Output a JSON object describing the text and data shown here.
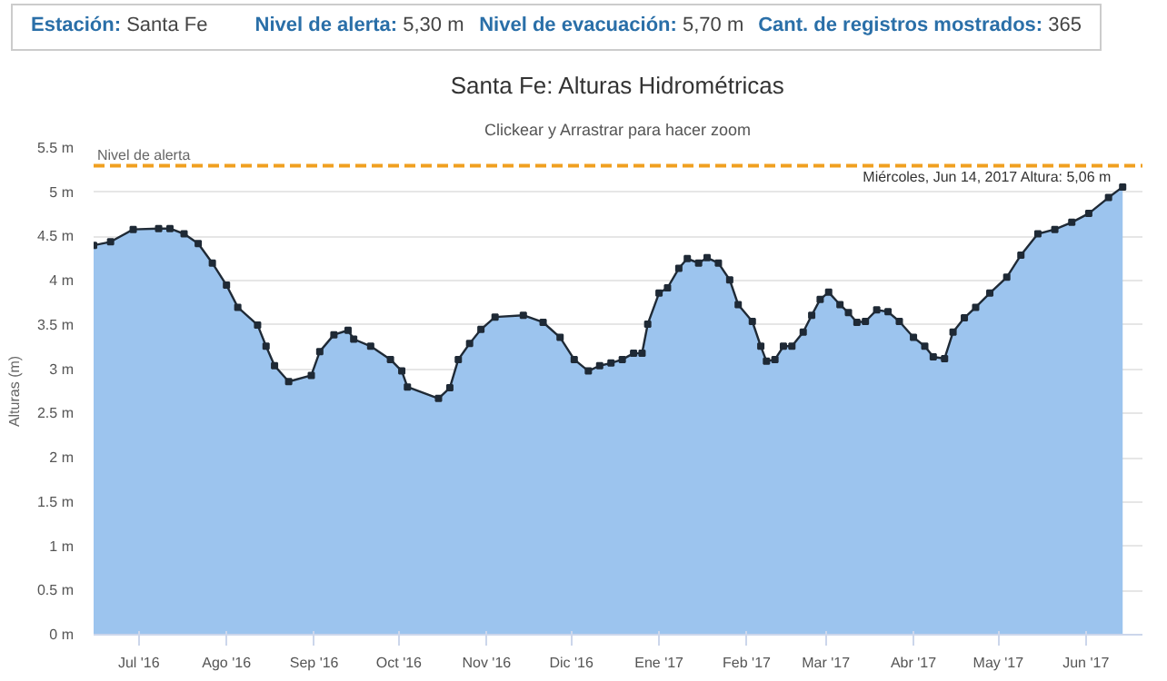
{
  "chart_data": {
    "type": "area",
    "title": "Santa Fe: Alturas Hidrométricas",
    "subtitle": "Clickear y Arrastrar para hacer zoom",
    "ylabel": "Alturas (m)",
    "annotations": [
      "Estación: Santa Fe",
      "Nivel de alerta: 5,30 m",
      "Nivel de evacuación: 5,70 m",
      "Cant. de registros mostrados: 365",
      {
        "text": "Miércoles, Jun 14, 2017 Altura: 5,06 m",
        "x": "2017-06-14",
        "y": 5.06
      }
    ],
    "x": [
      "2016-06-15",
      "2016-06-21",
      "2016-06-29",
      "2016-07-08",
      "2016-07-12",
      "2016-07-17",
      "2016-07-22",
      "2016-07-27",
      "2016-08-01",
      "2016-08-05",
      "2016-08-12",
      "2016-08-15",
      "2016-08-18",
      "2016-08-23",
      "2016-08-31",
      "2016-09-03",
      "2016-09-08",
      "2016-09-13",
      "2016-09-15",
      "2016-09-21",
      "2016-09-28",
      "2016-10-02",
      "2016-10-04",
      "2016-10-15",
      "2016-10-19",
      "2016-10-22",
      "2016-10-26",
      "2016-10-30",
      "2016-11-04",
      "2016-11-14",
      "2016-11-21",
      "2016-11-27",
      "2016-12-02",
      "2016-12-07",
      "2016-12-11",
      "2016-12-15",
      "2016-12-19",
      "2016-12-23",
      "2016-12-26",
      "2016-12-28",
      "2017-01-01",
      "2017-01-04",
      "2017-01-08",
      "2017-01-11",
      "2017-01-15",
      "2017-01-18",
      "2017-01-22",
      "2017-01-26",
      "2017-01-29",
      "2017-02-03",
      "2017-02-06",
      "2017-02-08",
      "2017-02-11",
      "2017-02-14",
      "2017-02-17",
      "2017-02-21",
      "2017-02-24",
      "2017-02-27",
      "2017-03-02",
      "2017-03-06",
      "2017-03-09",
      "2017-03-12",
      "2017-03-15",
      "2017-03-19",
      "2017-03-23",
      "2017-03-27",
      "2017-04-01",
      "2017-04-05",
      "2017-04-08",
      "2017-04-12",
      "2017-04-15",
      "2017-04-19",
      "2017-04-23",
      "2017-04-28",
      "2017-05-04",
      "2017-05-09",
      "2017-05-15",
      "2017-05-21",
      "2017-05-27",
      "2017-06-02",
      "2017-06-09",
      "2017-06-14"
    ],
    "series": [
      {
        "color": "#9cc4ee",
        "values": [
          4.4,
          4.44,
          4.58,
          4.59,
          4.59,
          4.53,
          4.42,
          4.2,
          3.95,
          3.7,
          3.5,
          3.26,
          3.04,
          2.86,
          2.93,
          3.2,
          3.39,
          3.44,
          3.34,
          3.26,
          3.11,
          2.98,
          2.8,
          2.67,
          2.79,
          3.11,
          3.29,
          3.45,
          3.59,
          3.61,
          3.53,
          3.36,
          3.11,
          2.98,
          3.04,
          3.07,
          3.11,
          3.18,
          3.18,
          3.51,
          3.86,
          3.92,
          4.14,
          4.25,
          4.2,
          4.26,
          4.2,
          4.01,
          3.73,
          3.54,
          3.26,
          3.09,
          3.11,
          3.26,
          3.26,
          3.42,
          3.61,
          3.79,
          3.87,
          3.73,
          3.64,
          3.53,
          3.54,
          3.67,
          3.65,
          3.54,
          3.36,
          3.26,
          3.14,
          3.12,
          3.42,
          3.58,
          3.7,
          3.86,
          4.04,
          4.29,
          4.53,
          4.58,
          4.66,
          4.76,
          4.94,
          5.06
        ]
      }
    ],
    "marker": "square",
    "xlim": [
      "2016-06-15",
      "2017-06-21"
    ],
    "xticks": [
      {
        "value": "2016-07-01",
        "label": "Jul '16"
      },
      {
        "value": "2016-08-01",
        "label": "Ago '16"
      },
      {
        "value": "2016-09-01",
        "label": "Sep '16"
      },
      {
        "value": "2016-10-01",
        "label": "Oct '16"
      },
      {
        "value": "2016-11-01",
        "label": "Nov '16"
      },
      {
        "value": "2016-12-01",
        "label": "Dic '16"
      },
      {
        "value": "2017-01-01",
        "label": "Ene '17"
      },
      {
        "value": "2017-02-01",
        "label": "Feb '17"
      },
      {
        "value": "2017-03-01",
        "label": "Mar '17"
      },
      {
        "value": "2017-04-01",
        "label": "Abr '17"
      },
      {
        "value": "2017-05-01",
        "label": "May '17"
      },
      {
        "value": "2017-06-01",
        "label": "Jun '17"
      }
    ],
    "ylim": [
      0,
      5.5
    ],
    "yticks": [
      {
        "value": 0,
        "label": "0 m"
      },
      {
        "value": 0.5,
        "label": "0.5 m"
      },
      {
        "value": 1,
        "label": "1 m"
      },
      {
        "value": 1.5,
        "label": "1.5 m"
      },
      {
        "value": 2,
        "label": "2 m"
      },
      {
        "value": 2.5,
        "label": "2.5 m"
      },
      {
        "value": 3,
        "label": "3 m"
      },
      {
        "value": 3.5,
        "label": "3.5 m"
      },
      {
        "value": 4,
        "label": "4 m"
      },
      {
        "value": 4.5,
        "label": "4.5 m"
      },
      {
        "value": 5,
        "label": "5 m"
      },
      {
        "value": 5.5,
        "label": "5.5 m"
      }
    ],
    "ref_lines": [
      {
        "axis": "y",
        "value": 5.3,
        "label": "Nivel de alerta",
        "color": "#f0a020",
        "line_style": "dashed"
      }
    ],
    "grid": "y"
  }
}
